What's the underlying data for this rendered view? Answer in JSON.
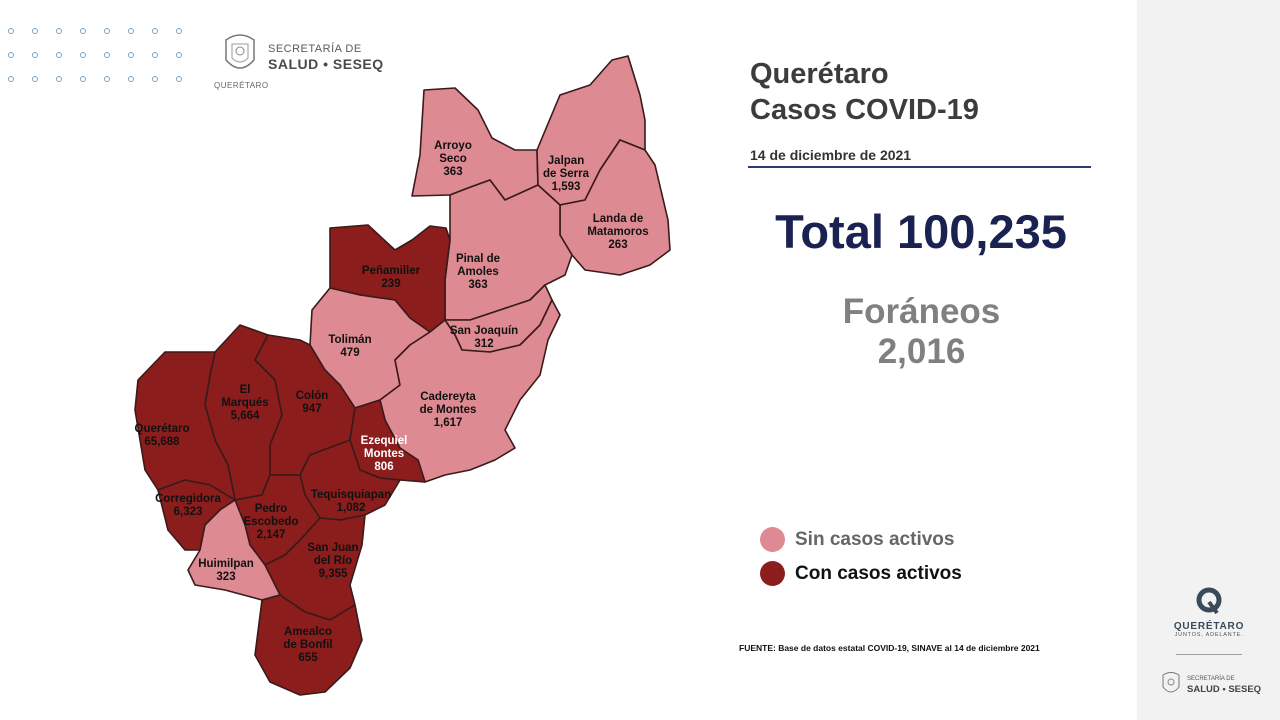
{
  "header": {
    "org_line1": "SECRETARÍA DE",
    "org_line2": "SALUD • SESEQ",
    "org_small": "QUERÉTARO"
  },
  "title": {
    "line1": "Querétaro",
    "line2": "Casos COVID-19"
  },
  "date": "14 de diciembre de 2021",
  "total": "Total 100,235",
  "foraneos": {
    "label": "Foráneos",
    "value": "2,016"
  },
  "legend": [
    {
      "label": "Sin casos activos",
      "color": "#de8a93"
    },
    {
      "label": "Con casos activos",
      "color": "#8c1d1d"
    }
  ],
  "source": "FUENTE: Base de datos estatal COVID-19, SINAVE al 14 de diciembre 2021",
  "colors": {
    "sin_activos": "#de8a93",
    "con_activos": "#8c1d1d",
    "total_text": "#1a2251",
    "rule": "#2b3d6b"
  },
  "municipios": [
    {
      "name_lines": [
        "Arroyo",
        "Seco"
      ],
      "cases": "363",
      "status": "sin"
    },
    {
      "name_lines": [
        "Jalpan",
        "de Serra"
      ],
      "cases": "1,593",
      "status": "sin"
    },
    {
      "name_lines": [
        "Landa de",
        "Matamoros"
      ],
      "cases": "263",
      "status": "sin"
    },
    {
      "name_lines": [
        "Pinal de",
        "Amoles"
      ],
      "cases": "363",
      "status": "sin"
    },
    {
      "name_lines": [
        "Peñamiller"
      ],
      "cases": "239",
      "status": "con"
    },
    {
      "name_lines": [
        "San Joaquín"
      ],
      "cases": "312",
      "status": "sin"
    },
    {
      "name_lines": [
        "Tolimán"
      ],
      "cases": "479",
      "status": "sin"
    },
    {
      "name_lines": [
        "Cadereyta",
        "de Montes"
      ],
      "cases": "1,617",
      "status": "sin"
    },
    {
      "name_lines": [
        "El",
        "Marqués"
      ],
      "cases": "5,664",
      "status": "con"
    },
    {
      "name_lines": [
        "Colón"
      ],
      "cases": "947",
      "status": "con"
    },
    {
      "name_lines": [
        "Querétaro"
      ],
      "cases": "65,688",
      "status": "con"
    },
    {
      "name_lines": [
        "Ezequiel",
        "Montes"
      ],
      "cases": "806",
      "status": "con"
    },
    {
      "name_lines": [
        "Corregidora"
      ],
      "cases": "6,323",
      "status": "con"
    },
    {
      "name_lines": [
        "Tequisquiapan"
      ],
      "cases": "1,082",
      "status": "con"
    },
    {
      "name_lines": [
        "Pedro",
        "Escobedo"
      ],
      "cases": "2,147",
      "status": "con"
    },
    {
      "name_lines": [
        "San Juan",
        "del Río"
      ],
      "cases": "9,355",
      "status": "con"
    },
    {
      "name_lines": [
        "Huimilpan"
      ],
      "cases": "323",
      "status": "sin"
    },
    {
      "name_lines": [
        "Amealco",
        "de Bonfil"
      ],
      "cases": "655",
      "status": "con"
    }
  ],
  "side_logo": {
    "word": "QUERÉTARO",
    "tagline": "JUNTOS, ADELANTE.",
    "org_line1": "SECRETARÍA DE",
    "org_line2": "SALUD • SESEQ"
  },
  "icons": [
    "seal-icon",
    "queretaro-q-logo-icon"
  ]
}
